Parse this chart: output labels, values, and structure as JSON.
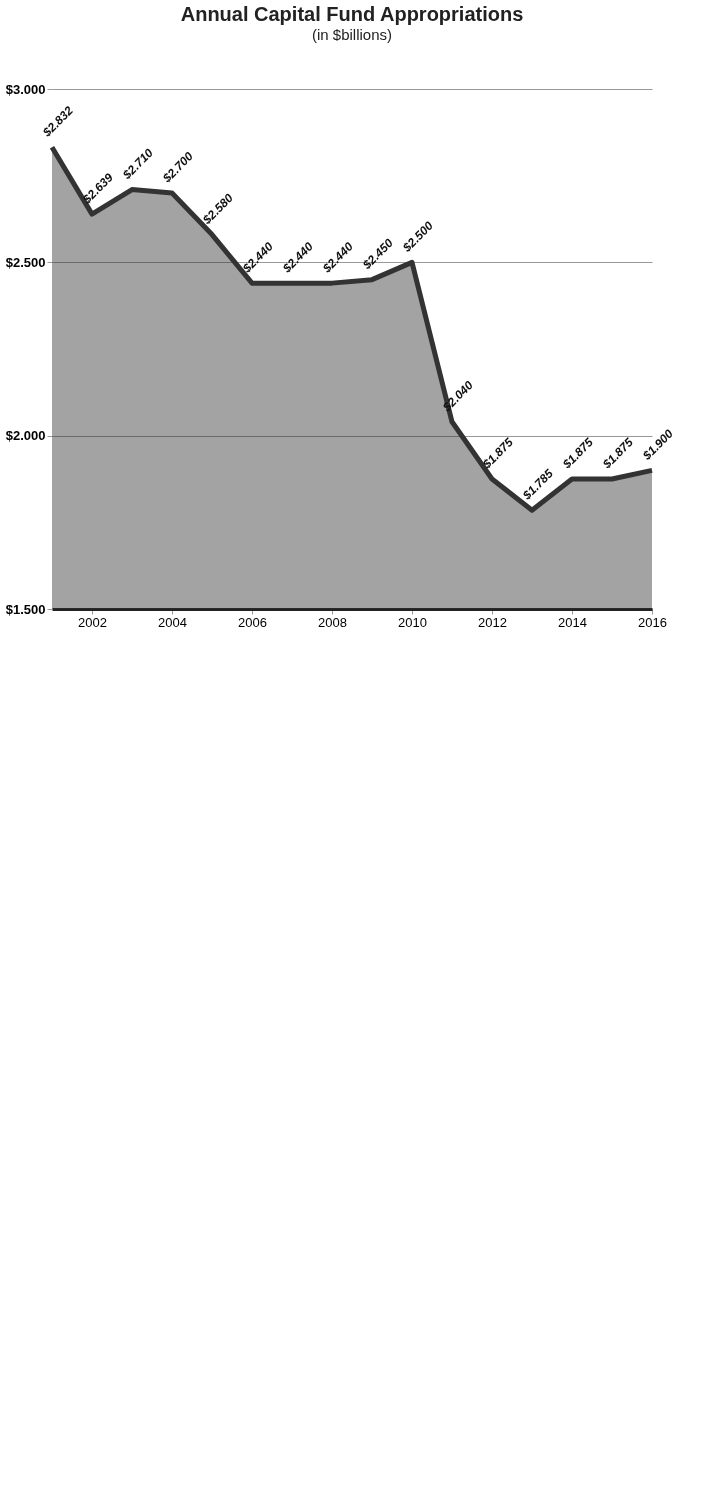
{
  "chart_data": {
    "type": "area",
    "title": "Annual Capital Fund Appropriations",
    "subtitle": "(in $billions)",
    "x": [
      2001,
      2002,
      2003,
      2004,
      2005,
      2006,
      2007,
      2008,
      2009,
      2010,
      2011,
      2012,
      2013,
      2014,
      2015,
      2016
    ],
    "series": [
      {
        "color": "#333333",
        "values": [
          2.832,
          2.639,
          2.71,
          2.7,
          2.58,
          2.44,
          2.44,
          2.44,
          2.45,
          2.5,
          2.04,
          1.875,
          1.785,
          1.875,
          1.875,
          1.9
        ],
        "value_labels": [
          "$2.832",
          "$2.639",
          "$2.710",
          "$2.700",
          "$2.580",
          "$2.440",
          "$2.440",
          "$2.440",
          "$2.450",
          "$2.500",
          "$2.040",
          "$1.875",
          "$1.785",
          "$1.875",
          "$1.875",
          "$1.900"
        ]
      }
    ],
    "xlim": [
      2001,
      2016
    ],
    "xticks": [
      2002,
      2004,
      2006,
      2008,
      2010,
      2012,
      2014,
      2016
    ],
    "ylim": [
      1.5,
      3.0
    ],
    "yticks": [
      {
        "value": 1.5,
        "label": "$1.500"
      },
      {
        "value": 2.0,
        "label": "$2.000"
      },
      {
        "value": 2.5,
        "label": "$2.500"
      },
      {
        "value": 3.0,
        "label": "$3.000"
      }
    ],
    "grid": "y"
  }
}
